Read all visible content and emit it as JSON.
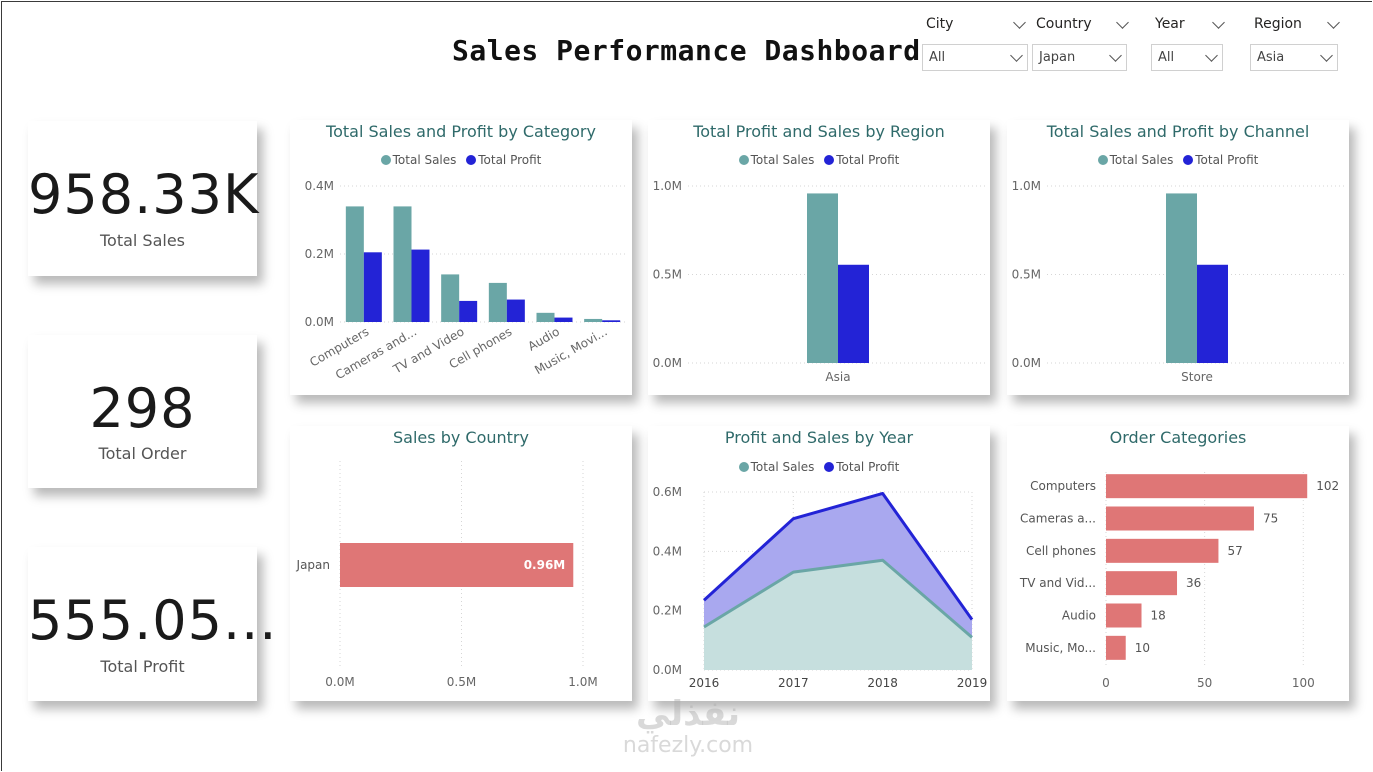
{
  "title": "Sales Performance Dashboard",
  "colors": {
    "sales": "#6aa6a6",
    "profit": "#2323d6",
    "bar": "#df7676",
    "title": "#2f6a6a",
    "area_sales_fill": "#c6dfde",
    "area_profit_fill": "#a9a8ef"
  },
  "slicers": [
    {
      "label": "City",
      "value": "All"
    },
    {
      "label": "Country",
      "value": "Japan"
    },
    {
      "label": "Year",
      "value": "All"
    },
    {
      "label": "Region",
      "value": "Asia"
    }
  ],
  "kpis": [
    {
      "value": "958.33K",
      "label": "Total Sales"
    },
    {
      "value": "298",
      "label": "Total Order"
    },
    {
      "value": "555.05...",
      "label": "Total Profit"
    }
  ],
  "legend": {
    "sales": "Total Sales",
    "profit": "Total Profit"
  },
  "watermark": {
    "arabic": "نفذلي",
    "latin": "nafezly.com"
  },
  "chart_data": [
    {
      "id": "category",
      "type": "bar",
      "title": "Total Sales and Profit by Category",
      "categories": [
        "Computers",
        "Cameras and...",
        "TV and Video",
        "Cell phones",
        "Audio",
        "Music, Movi..."
      ],
      "series": [
        {
          "name": "Total Sales",
          "values": [
            0.34,
            0.34,
            0.14,
            0.115,
            0.027,
            0.009
          ]
        },
        {
          "name": "Total Profit",
          "values": [
            0.205,
            0.213,
            0.062,
            0.066,
            0.013,
            0.005
          ]
        }
      ],
      "ylim": [
        0,
        0.4
      ],
      "yticks": [
        0,
        0.2,
        0.4
      ],
      "yticklabels": [
        "0.0M",
        "0.2M",
        "0.4M"
      ],
      "legend_position": "top-center",
      "grid": true
    },
    {
      "id": "region",
      "type": "bar",
      "title": "Total Profit and Sales by Region",
      "categories": [
        "Asia"
      ],
      "series": [
        {
          "name": "Total Sales",
          "values": [
            0.958
          ]
        },
        {
          "name": "Total Profit",
          "values": [
            0.555
          ]
        }
      ],
      "ylim": [
        0,
        1.0
      ],
      "yticks": [
        0,
        0.5,
        1.0
      ],
      "yticklabels": [
        "0.0M",
        "0.5M",
        "1.0M"
      ],
      "legend_position": "top-center",
      "grid": true
    },
    {
      "id": "channel",
      "type": "bar",
      "title": "Total Sales and Profit by Channel",
      "categories": [
        "Store"
      ],
      "series": [
        {
          "name": "Total Sales",
          "values": [
            0.958
          ]
        },
        {
          "name": "Total Profit",
          "values": [
            0.555
          ]
        }
      ],
      "ylim": [
        0,
        1.0
      ],
      "yticks": [
        0,
        0.5,
        1.0
      ],
      "yticklabels": [
        "0.0M",
        "0.5M",
        "1.0M"
      ],
      "legend_position": "top-center",
      "grid": true
    },
    {
      "id": "country",
      "type": "bar",
      "orientation": "horizontal",
      "title": "Sales by Country",
      "categories": [
        "Japan"
      ],
      "values": [
        0.96
      ],
      "data_labels": [
        "0.96M"
      ],
      "xlim": [
        0,
        1.0
      ],
      "xticks": [
        0,
        0.5,
        1.0
      ],
      "xticklabels": [
        "0.0M",
        "0.5M",
        "1.0M"
      ],
      "grid": true
    },
    {
      "id": "year",
      "type": "area",
      "title": "Profit and Sales by Year",
      "x": [
        "2016",
        "2017",
        "2018",
        "2019"
      ],
      "series": [
        {
          "name": "Total Sales",
          "values": [
            0.145,
            0.33,
            0.37,
            0.11
          ]
        },
        {
          "name": "Total Profit",
          "values": [
            0.235,
            0.51,
            0.595,
            0.17
          ]
        }
      ],
      "ylim": [
        0,
        0.6
      ],
      "yticks": [
        0,
        0.2,
        0.4,
        0.6
      ],
      "yticklabels": [
        "0.0M",
        "0.2M",
        "0.4M",
        "0.6M"
      ],
      "legend_position": "top-center",
      "grid": true
    },
    {
      "id": "orders",
      "type": "bar",
      "orientation": "horizontal",
      "title": "Order Categories",
      "categories": [
        "Computers",
        "Cameras a...",
        "Cell phones",
        "TV and Vid...",
        "Audio",
        "Music, Mo..."
      ],
      "values": [
        102,
        75,
        57,
        36,
        18,
        10
      ],
      "xlim": [
        0,
        110
      ],
      "xticks": [
        0,
        50,
        100
      ],
      "xticklabels": [
        "0",
        "50",
        "100"
      ],
      "grid": true
    }
  ]
}
